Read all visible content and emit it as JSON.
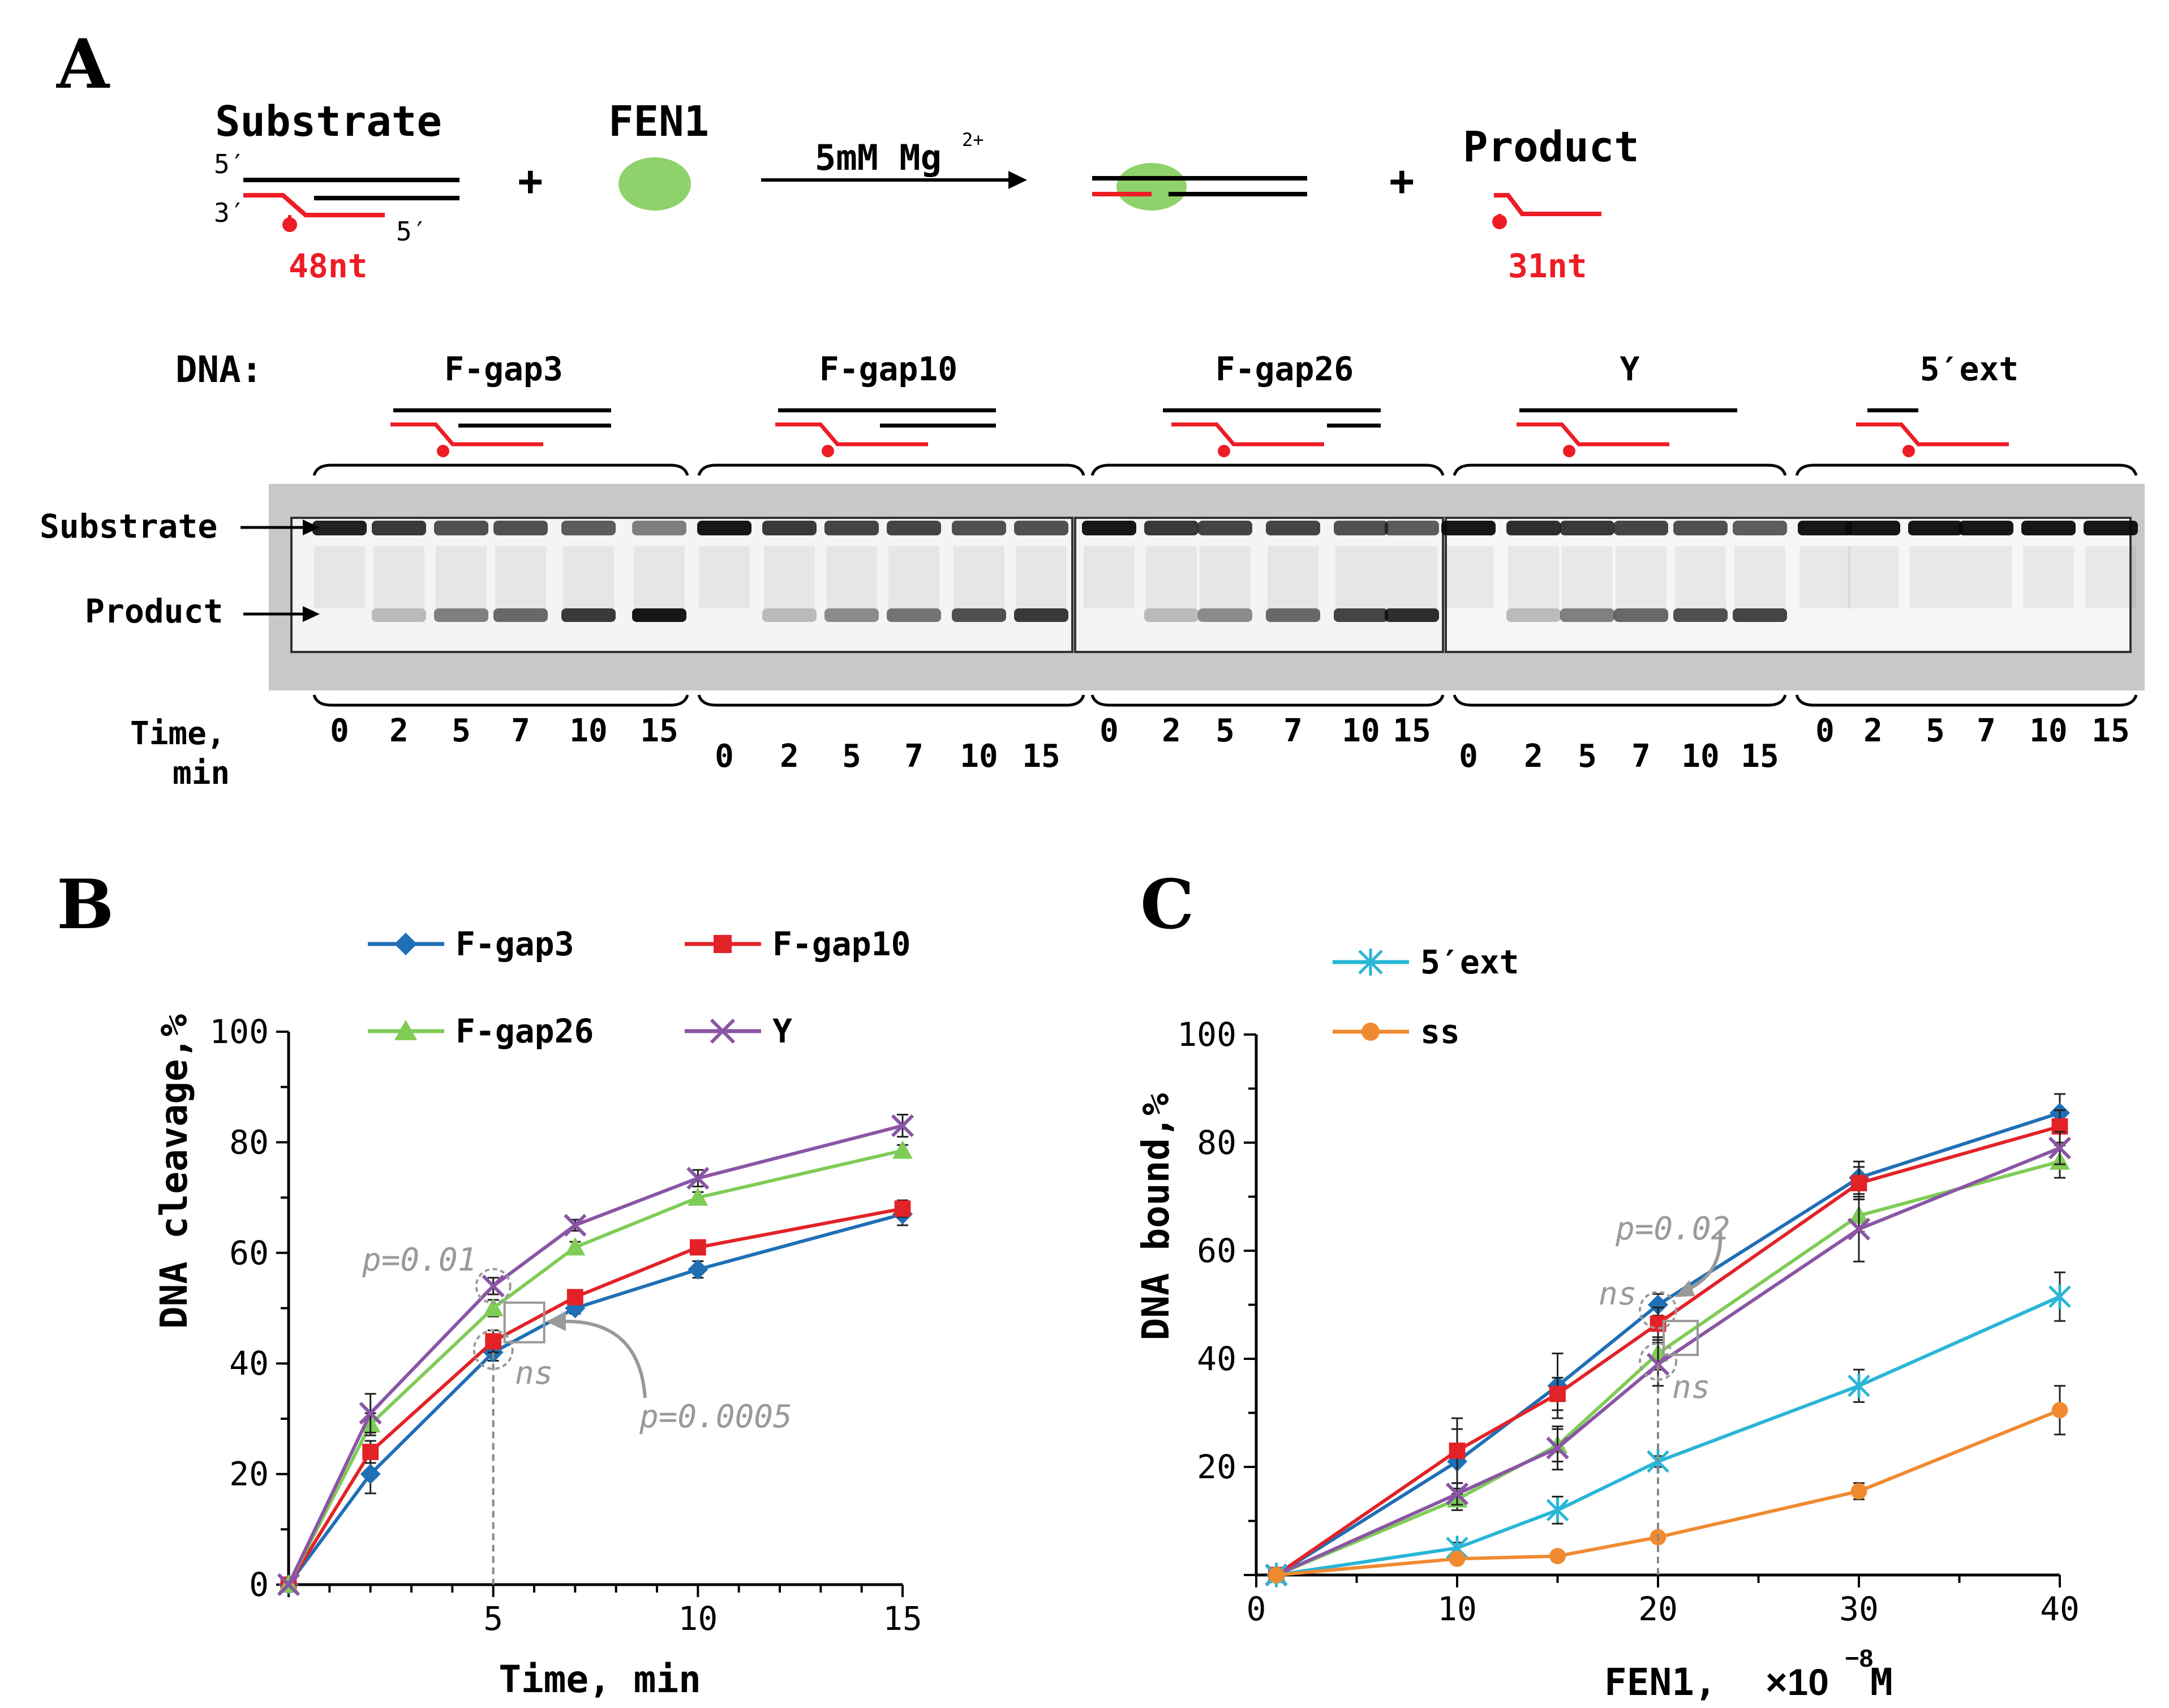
{
  "panelA": {
    "letter": "A",
    "substrate_label": "Substrate",
    "enzyme_label": "FEN1",
    "condition": "5mM Mg",
    "condition_sup": "2+",
    "product_label": "Product",
    "five_prime": "5′",
    "three_prime": "3′",
    "five_prime_b": "5′",
    "substrate_len": "48nt",
    "product_len": "31nt",
    "plus1": "+",
    "plus2": "+",
    "dna_label": "DNA:",
    "groups": [
      {
        "name": "F-gap3",
        "times": [
          "0",
          "2",
          "5",
          "7",
          "10",
          "15"
        ]
      },
      {
        "name": "F-gap10",
        "times": [
          "0",
          "2",
          "5",
          "7",
          "10",
          "15"
        ]
      },
      {
        "name": "F-gap26",
        "times": [
          "0",
          "2",
          "5",
          "7",
          "10",
          "15"
        ]
      },
      {
        "name": "Y",
        "times": [
          "0",
          "2",
          "5",
          "7",
          "10",
          "15"
        ]
      },
      {
        "name": "5′ext",
        "times": [
          "0",
          "2",
          "5",
          "7",
          "10",
          "15"
        ]
      }
    ],
    "gel_substrate_label": "Substrate",
    "gel_product_label": "Product",
    "time_label_1": "Time,",
    "time_label_2": "min"
  },
  "colors": {
    "blue": "#1f6fb5",
    "red": "#e32227",
    "green": "#7fcc57",
    "purple": "#8a55a5",
    "cyan": "#29b5d6",
    "orange": "#f08a30",
    "annot": "#9a9a9a",
    "gel_bg": "#c8c8c8",
    "dna_red": "#ee1c25",
    "fen_green": "#8fd16a"
  },
  "panelB": {
    "letter": "B",
    "annotations": {
      "p1": "p=0.01",
      "p2": "p=0.0005",
      "ns": "ns"
    }
  },
  "panelC": {
    "letter": "C",
    "annotations": {
      "p1": "p=0.02",
      "ns1": "ns",
      "ns2": "ns"
    },
    "xlabel_main": "FEN1, ",
    "xlabel_times": "×10",
    "xlabel_exp": "−8",
    "xlabel_unit": "M"
  },
  "chart_data": [
    {
      "type": "line",
      "xlabel": "Time, min",
      "ylabel": "DNA cleavage,%",
      "xlim": [
        0,
        15
      ],
      "ylim": [
        0,
        100
      ],
      "x_ticks": [
        5,
        10,
        15
      ],
      "y_ticks": [
        0,
        20,
        40,
        60,
        80,
        100
      ],
      "x": [
        0,
        2,
        5,
        7,
        10,
        15
      ],
      "legend_position": "top",
      "series": [
        {
          "name": "F-gap3",
          "color": "#1f6fb5",
          "marker": "diamond",
          "values": [
            0,
            20,
            42,
            50,
            57,
            67
          ],
          "err": [
            0,
            3.5,
            1.5,
            1,
            1.5,
            2
          ]
        },
        {
          "name": "F-gap10",
          "color": "#e32227",
          "marker": "square",
          "values": [
            0,
            24,
            44,
            52,
            61,
            68
          ],
          "err": [
            0,
            2,
            2,
            1,
            1,
            1.5
          ]
        },
        {
          "name": "F-gap26",
          "color": "#7fcc57",
          "marker": "triangle",
          "values": [
            0,
            29,
            50,
            61,
            70,
            78.5
          ],
          "err": [
            0,
            2,
            1.5,
            1,
            1,
            1
          ]
        },
        {
          "name": "Y",
          "color": "#8a55a5",
          "marker": "x",
          "values": [
            0,
            31,
            54,
            65,
            73.5,
            83
          ],
          "err": [
            0,
            3.5,
            1.5,
            1,
            1.5,
            2
          ]
        }
      ]
    },
    {
      "type": "line",
      "xlabel": "FEN1, ×10−8M",
      "ylabel": "DNA bound,%",
      "xlim": [
        0,
        40
      ],
      "ylim": [
        0,
        100
      ],
      "x_ticks": [
        0,
        10,
        20,
        30,
        40
      ],
      "y_ticks": [
        20,
        40,
        60,
        80,
        100
      ],
      "x": [
        1,
        10,
        15,
        20,
        30,
        40
      ],
      "legend_position": "top-left",
      "series": [
        {
          "name": "F-gap3",
          "color": "#1f6fb5",
          "marker": "diamond",
          "values": [
            0,
            21,
            35,
            50,
            73.5,
            85.5
          ],
          "err": [
            0,
            6,
            6,
            2,
            3,
            3.5
          ],
          "legend": false
        },
        {
          "name": "F-gap10",
          "color": "#e32227",
          "marker": "square",
          "values": [
            0,
            23,
            33.5,
            46.5,
            72.5,
            83
          ],
          "err": [
            0,
            6,
            3,
            3,
            3,
            3
          ],
          "legend": false
        },
        {
          "name": "F-gap26",
          "color": "#7fcc57",
          "marker": "triangle",
          "values": [
            0,
            14,
            24,
            41,
            66.5,
            76.5
          ],
          "err": [
            0,
            2,
            3,
            3,
            3,
            3
          ],
          "legend": false
        },
        {
          "name": "Y",
          "color": "#8a55a5",
          "marker": "x",
          "values": [
            0,
            15,
            23.5,
            39,
            64,
            79
          ],
          "err": [
            0,
            2,
            4,
            4,
            6,
            3
          ],
          "legend": false
        },
        {
          "name": "5′ext",
          "color": "#29b5d6",
          "marker": "star",
          "values": [
            0,
            5,
            12,
            21,
            35,
            51.5
          ],
          "err": [
            0,
            1,
            2.5,
            1,
            3,
            4.5
          ],
          "legend": true
        },
        {
          "name": "ss",
          "color": "#f08a30",
          "marker": "circle",
          "values": [
            0,
            3,
            3.5,
            7,
            15.5,
            30.5
          ],
          "err": [
            0,
            0.5,
            0.5,
            0.5,
            1.5,
            4.5
          ],
          "legend": true
        }
      ]
    }
  ]
}
